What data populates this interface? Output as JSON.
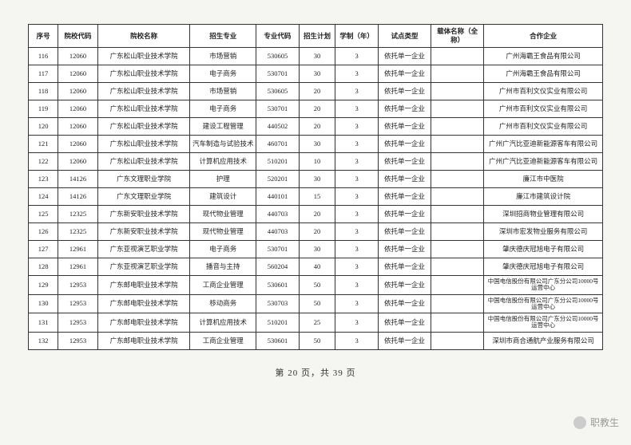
{
  "table": {
    "headers": [
      "序号",
      "院校代码",
      "院校名称",
      "招生专业",
      "专业代码",
      "招生计划",
      "学制（年）",
      "试点类型",
      "载体名称（全称）",
      "合作企业"
    ],
    "rows": [
      [
        "116",
        "12060",
        "广东松山职业技术学院",
        "市场营销",
        "530605",
        "30",
        "3",
        "依托单一企业",
        "",
        "广州海霸王食品有限公司"
      ],
      [
        "117",
        "12060",
        "广东松山职业技术学院",
        "电子商务",
        "530701",
        "30",
        "3",
        "依托单一企业",
        "",
        "广州海霸王食品有限公司"
      ],
      [
        "118",
        "12060",
        "广东松山职业技术学院",
        "市场营销",
        "530605",
        "20",
        "3",
        "依托单一企业",
        "",
        "广州市百利文仪实业有限公司"
      ],
      [
        "119",
        "12060",
        "广东松山职业技术学院",
        "电子商务",
        "530701",
        "20",
        "3",
        "依托单一企业",
        "",
        "广州市百利文仪实业有限公司"
      ],
      [
        "120",
        "12060",
        "广东松山职业技术学院",
        "建设工程管理",
        "440502",
        "20",
        "3",
        "依托单一企业",
        "",
        "广州市百利文仪实业有限公司"
      ],
      [
        "121",
        "12060",
        "广东松山职业技术学院",
        "汽车制造与试验技术",
        "460701",
        "30",
        "3",
        "依托单一企业",
        "",
        "广州广汽比亚迪新能源客车有限公司"
      ],
      [
        "122",
        "12060",
        "广东松山职业技术学院",
        "计算机应用技术",
        "510201",
        "10",
        "3",
        "依托单一企业",
        "",
        "广州广汽比亚迪新能源客车有限公司"
      ],
      [
        "123",
        "14126",
        "广东文理职业学院",
        "护理",
        "520201",
        "30",
        "3",
        "依托单一企业",
        "",
        "廉江市中医院"
      ],
      [
        "124",
        "14126",
        "广东文理职业学院",
        "建筑设计",
        "440101",
        "15",
        "3",
        "依托单一企业",
        "",
        "廉江市建筑设计院"
      ],
      [
        "125",
        "12325",
        "广东新安职业技术学院",
        "现代物业管理",
        "440703",
        "20",
        "3",
        "依托单一企业",
        "",
        "深圳招商物业管理有限公司"
      ],
      [
        "126",
        "12325",
        "广东新安职业技术学院",
        "现代物业管理",
        "440703",
        "20",
        "3",
        "依托单一企业",
        "",
        "深圳市宏发物业服务有限公司"
      ],
      [
        "127",
        "12961",
        "广东亚视演艺职业学院",
        "电子商务",
        "530701",
        "30",
        "3",
        "依托单一企业",
        "",
        "肇庆德庆冠旭电子有限公司"
      ],
      [
        "128",
        "12961",
        "广东亚视演艺职业学院",
        "播音与主持",
        "560204",
        "40",
        "3",
        "依托单一企业",
        "",
        "肇庆德庆冠旭电子有限公司"
      ],
      [
        "129",
        "12953",
        "广东邮电职业技术学院",
        "工商企业管理",
        "530601",
        "50",
        "3",
        "依托单一企业",
        "",
        "中国电信股份有限公司广东分公司10000号运营中心"
      ],
      [
        "130",
        "12953",
        "广东邮电职业技术学院",
        "移动商务",
        "530703",
        "50",
        "3",
        "依托单一企业",
        "",
        "中国电信股份有限公司广东分公司10000号运营中心"
      ],
      [
        "131",
        "12953",
        "广东邮电职业技术学院",
        "计算机应用技术",
        "510201",
        "25",
        "3",
        "依托单一企业",
        "",
        "中国电信股份有限公司广东分公司10000号运营中心"
      ],
      [
        "132",
        "12953",
        "广东邮电职业技术学院",
        "工商企业管理",
        "530601",
        "50",
        "3",
        "依托单一企业",
        "",
        "深圳市商合通航产业服务有限公司"
      ]
    ]
  },
  "footer": "第 20 页，共 39 页",
  "watermark": "职教生",
  "col_classes": [
    "col-seq",
    "col-code",
    "col-school",
    "col-major",
    "col-majorcode",
    "col-plan",
    "col-years",
    "col-type",
    "col-carrier",
    "col-partner"
  ],
  "two_line_rows": [
    13,
    14,
    15
  ]
}
